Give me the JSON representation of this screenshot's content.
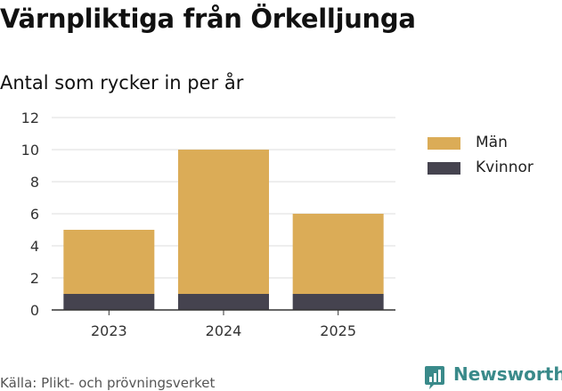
{
  "header": {
    "title": "Värnpliktiga från Örkelljunga",
    "subtitle": "Antal som rycker in per år"
  },
  "chart_data": {
    "type": "bar",
    "stacked": true,
    "categories": [
      "2023",
      "2024",
      "2025"
    ],
    "series": [
      {
        "name": "Kvinnor",
        "values": [
          1,
          1,
          1
        ],
        "color": "#45434f"
      },
      {
        "name": "Män",
        "values": [
          4,
          9,
          5
        ],
        "color": "#dbac57"
      }
    ],
    "legend_order": [
      "Män",
      "Kvinnor"
    ],
    "legend_position": "right",
    "ylim": [
      0,
      12
    ],
    "yticks": [
      0,
      2,
      4,
      6,
      8,
      10,
      12
    ],
    "grid": true,
    "xlabel": "",
    "ylabel": ""
  },
  "footer": {
    "source": "Källa: Plikt- och prövningsverket",
    "brand": "Newsworthy",
    "brand_icon": "newsworthy-logo-icon",
    "brand_color": "#3a8a8a"
  }
}
